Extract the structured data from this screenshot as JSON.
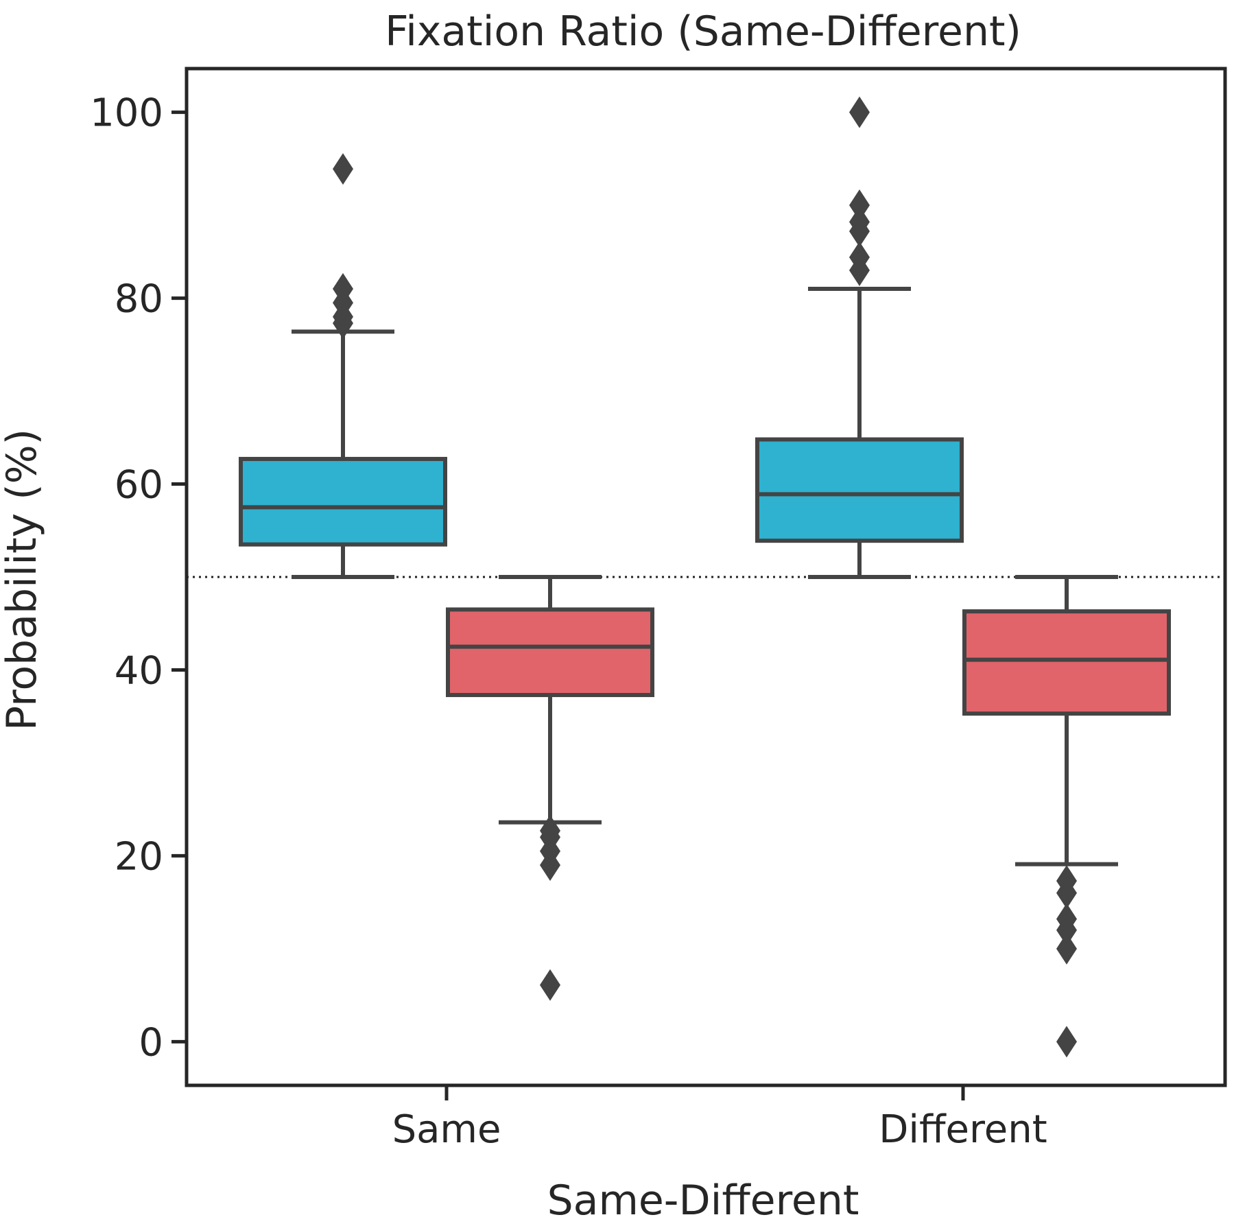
{
  "chart_data": {
    "type": "box",
    "title": "Fixation Ratio (Same-Different)",
    "xlabel": "Same-Different",
    "ylabel": "Probability (%)",
    "ylim": [
      -4.7,
      104.7
    ],
    "yticks": [
      0,
      20,
      40,
      60,
      80,
      100
    ],
    "categories": [
      "Same",
      "Different"
    ],
    "reference_line": {
      "y": 50,
      "style": "dotted"
    },
    "colors": {
      "series_a": "#2fb1d0",
      "series_b": "#e1646b",
      "lines": "#444444",
      "axes": "#262626"
    },
    "boxes": [
      {
        "category": "Same",
        "series": "series_a",
        "whisker_low": 50,
        "q1": 53.5,
        "median": 57.5,
        "q3": 62.7,
        "whisker_high": 76.4,
        "outliers": [
          77.3,
          78,
          79.5,
          81,
          93.9
        ]
      },
      {
        "category": "Same",
        "series": "series_b",
        "whisker_low": 23.6,
        "q1": 37.3,
        "median": 42.5,
        "q3": 46.5,
        "whisker_high": 50,
        "outliers": [
          22.7,
          22,
          20.5,
          19,
          6.1
        ]
      },
      {
        "category": "Different",
        "series": "series_a",
        "whisker_low": 50,
        "q1": 53.9,
        "median": 58.9,
        "q3": 64.8,
        "whisker_high": 81,
        "outliers": [
          83,
          84.4,
          87.2,
          88.2,
          90,
          100
        ]
      },
      {
        "category": "Different",
        "series": "series_b",
        "whisker_low": 19.1,
        "q1": 35.3,
        "median": 41.1,
        "q3": 46.3,
        "whisker_high": 50,
        "outliers": [
          17.3,
          16,
          13.2,
          12,
          10,
          0
        ]
      }
    ]
  }
}
